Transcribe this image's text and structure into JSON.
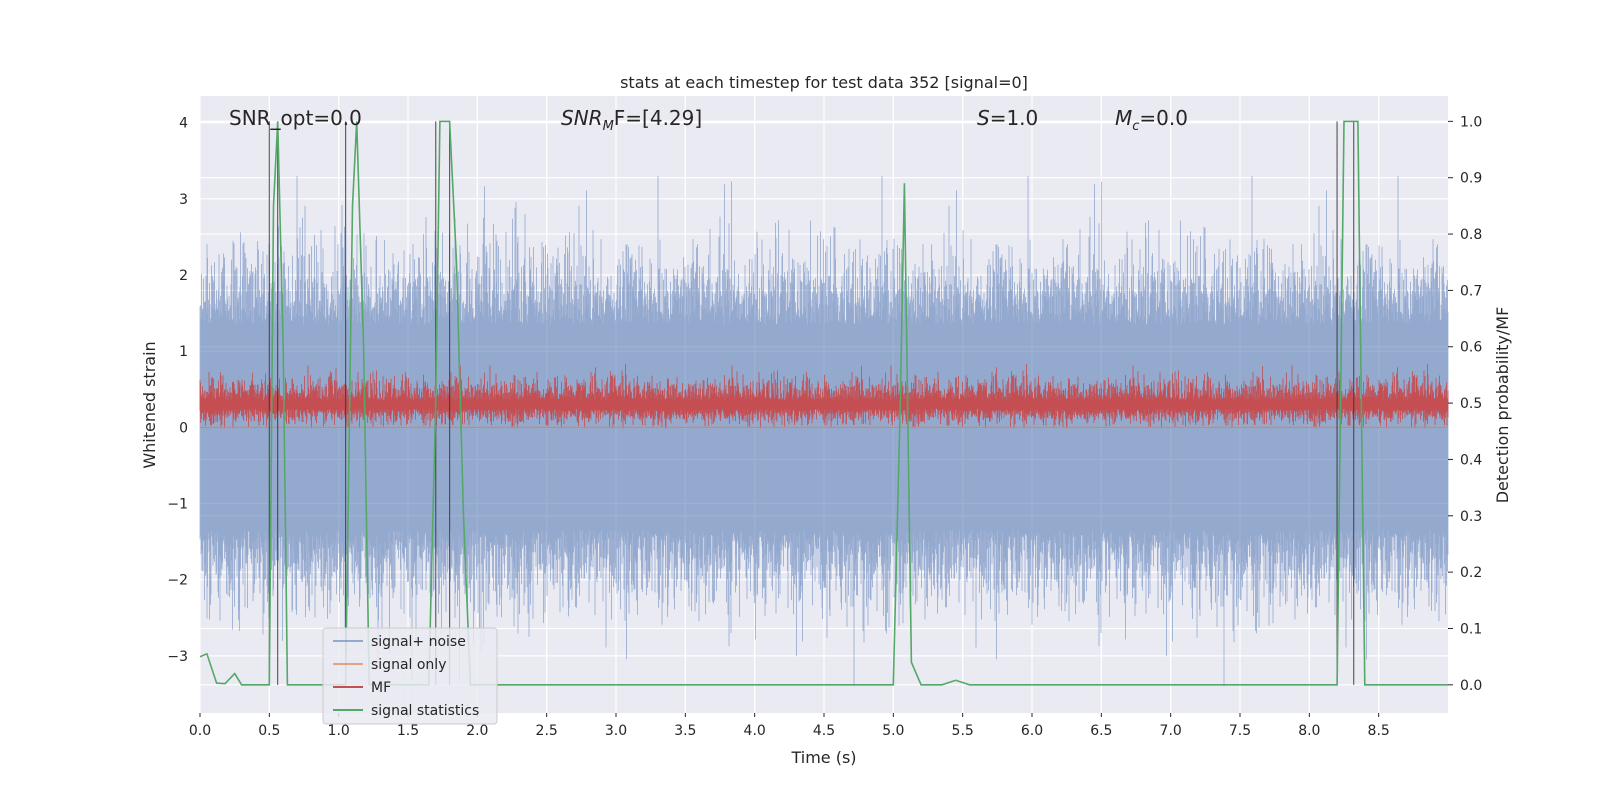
{
  "chart_data": {
    "type": "line",
    "title": "stats at each timestep for test data 352 [signal=0]",
    "xlabel": "Time (s)",
    "ylabel_left": "Whitened strain",
    "ylabel_right": "Detection probability/MF",
    "xlim": [
      0.0,
      9.0
    ],
    "ylim_left": [
      -3.75,
      4.35
    ],
    "ylim_right": [
      -0.05,
      1.045
    ],
    "xticks": [
      "0.0",
      "0.5",
      "1.0",
      "1.5",
      "2.0",
      "2.5",
      "3.0",
      "3.5",
      "4.0",
      "4.5",
      "5.0",
      "5.5",
      "6.0",
      "6.5",
      "7.0",
      "7.5",
      "8.0",
      "8.5"
    ],
    "xtick_values": [
      0.0,
      0.5,
      1.0,
      1.5,
      2.0,
      2.5,
      3.0,
      3.5,
      4.0,
      4.5,
      5.0,
      5.5,
      6.0,
      6.5,
      7.0,
      7.5,
      8.0,
      8.5
    ],
    "yticks_left": [
      "−3",
      "−2",
      "−1",
      "0",
      "1",
      "2",
      "3",
      "4"
    ],
    "ytick_values_left": [
      -3,
      -2,
      -1,
      0,
      1,
      2,
      3,
      4
    ],
    "yticks_right": [
      "0.0",
      "0.1",
      "0.2",
      "0.3",
      "0.4",
      "0.5",
      "0.6",
      "0.7",
      "0.8",
      "0.9",
      "1.0"
    ],
    "ytick_values_right": [
      0.0,
      0.1,
      0.2,
      0.3,
      0.4,
      0.5,
      0.6,
      0.7,
      0.8,
      0.9,
      1.0
    ],
    "grid": true,
    "legend_placement": "lower-left",
    "annotations": {
      "snr_opt": "SNR_opt=0.0",
      "snr_mf_main": "SNR",
      "snr_mf_sub": "M",
      "snr_mf_rest": "F=[4.29]",
      "s_main": "S",
      "s_rest": "=1.0",
      "mc_main": "M",
      "mc_sub": "c",
      "mc_rest": "=0.0"
    },
    "series": [
      {
        "name": "signal+ noise",
        "color": "#4c72b0",
        "description_range": [
          -3.4,
          3.3
        ]
      },
      {
        "name": "signal only",
        "color": "#dd8452",
        "values_constant": 0.0
      },
      {
        "name": "MF",
        "color": "#c44e52",
        "axis": "right",
        "range": [
          0.455,
          0.61
        ]
      },
      {
        "name": "signal statistics",
        "color": "#55a868",
        "axis": "right",
        "x": [
          0.0,
          0.05,
          0.12,
          0.18,
          0.25,
          0.3,
          0.5,
          0.53,
          0.56,
          0.6,
          0.63,
          1.05,
          1.1,
          1.13,
          1.18,
          1.22,
          1.65,
          1.7,
          1.73,
          1.8,
          1.85,
          1.9,
          1.95,
          2.0,
          5.0,
          5.05,
          5.08,
          5.13,
          5.2,
          5.35,
          5.45,
          5.55,
          7.9,
          8.0,
          8.2,
          8.25,
          8.35,
          8.4,
          9.0
        ],
        "y": [
          0.05,
          0.055,
          0.003,
          0.002,
          0.02,
          0.0,
          0.0,
          0.85,
          1.0,
          0.6,
          0.0,
          0.0,
          0.85,
          1.0,
          0.6,
          0.0,
          0.0,
          0.5,
          1.0,
          1.0,
          0.75,
          0.3,
          0.0,
          0.0,
          0.0,
          0.5,
          0.89,
          0.04,
          0.0,
          0.0,
          0.008,
          0.0,
          0.0,
          0.0,
          0.0,
          1.0,
          1.0,
          0.0,
          0.0
        ]
      }
    ],
    "detection_markers_x": [
      0.5,
      0.56,
      1.05,
      1.7,
      1.8,
      8.2,
      8.32
    ]
  }
}
